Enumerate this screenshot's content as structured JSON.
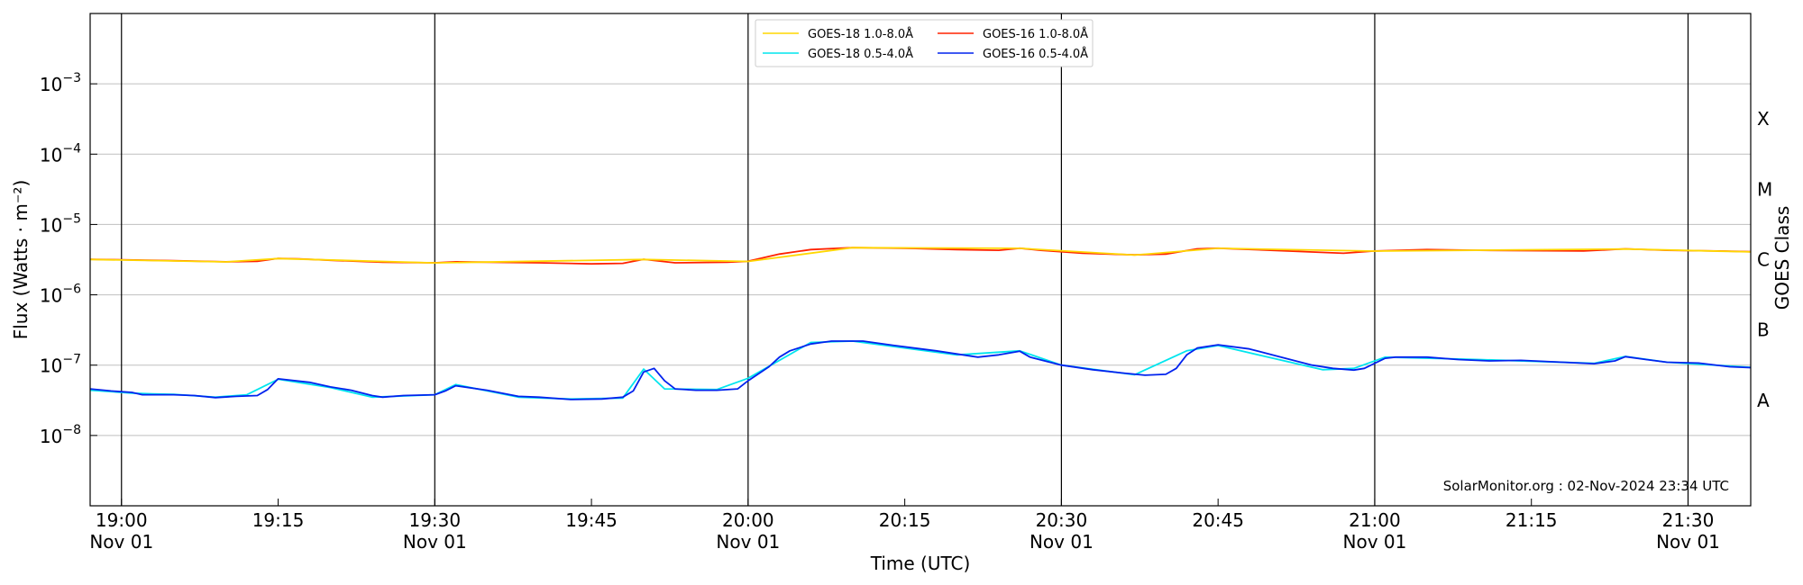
{
  "chart_data": {
    "type": "line",
    "xlabel": "Time (UTC)",
    "ylabel": "Flux (Watts · m⁻²)",
    "right_axis_label": "GOES Class",
    "xlim": [
      "2024-11-01T18:57:00",
      "2024-11-01T21:36:00"
    ],
    "ylim": [
      1e-09,
      0.01
    ],
    "y_scale": "log",
    "grid": "horizontal",
    "legend_position": "top-center",
    "x_ticks": [
      {
        "time": "19:00",
        "line1": "19:00",
        "line2": "Nov 01"
      },
      {
        "time": "19:15",
        "line1": "19:15",
        "line2": ""
      },
      {
        "time": "19:30",
        "line1": "19:30",
        "line2": "Nov 01"
      },
      {
        "time": "19:45",
        "line1": "19:45",
        "line2": ""
      },
      {
        "time": "20:00",
        "line1": "20:00",
        "line2": "Nov 01"
      },
      {
        "time": "20:15",
        "line1": "20:15",
        "line2": ""
      },
      {
        "time": "20:30",
        "line1": "20:30",
        "line2": "Nov 01"
      },
      {
        "time": "20:45",
        "line1": "20:45",
        "line2": ""
      },
      {
        "time": "21:00",
        "line1": "21:00",
        "line2": "Nov 01"
      },
      {
        "time": "21:15",
        "line1": "21:15",
        "line2": ""
      },
      {
        "time": "21:30",
        "line1": "21:30",
        "line2": "Nov 01"
      }
    ],
    "vertical_lines": [
      "19:00",
      "19:30",
      "20:00",
      "20:30",
      "21:00",
      "21:30"
    ],
    "y_ticks": [
      {
        "value": 1e-08,
        "base": "10",
        "exp": "−8"
      },
      {
        "value": 1e-07,
        "base": "10",
        "exp": "−7"
      },
      {
        "value": 1e-06,
        "base": "10",
        "exp": "−6"
      },
      {
        "value": 1e-05,
        "base": "10",
        "exp": "−5"
      },
      {
        "value": 0.0001,
        "base": "10",
        "exp": "−4"
      },
      {
        "value": 0.001,
        "base": "10",
        "exp": "−3"
      }
    ],
    "goes_classes": [
      {
        "label": "A",
        "value": 3.16e-08
      },
      {
        "label": "B",
        "value": 3.16e-07
      },
      {
        "label": "C",
        "value": 3.16e-06
      },
      {
        "label": "M",
        "value": 3.16e-05
      },
      {
        "label": "X",
        "value": 0.000316
      }
    ],
    "legend": [
      {
        "label": "GOES-18 1.0-8.0Å",
        "color": "#ffd700"
      },
      {
        "label": "GOES-18 0.5-4.0Å",
        "color": "#00e5ee"
      },
      {
        "label": "GOES-16 1.0-8.0Å",
        "color": "#ff2200"
      },
      {
        "label": "GOES-16 0.5-4.0Å",
        "color": "#0022ee"
      }
    ],
    "annotation": "SolarMonitor.org : 02-Nov-2024 23:34 UTC",
    "series": [
      {
        "name": "GOES-16 1.0-8.0Å",
        "color": "#ff2200",
        "points": [
          [
            "18:57",
            3.2e-06
          ],
          [
            "19:00",
            3.15e-06
          ],
          [
            "19:05",
            3.05e-06
          ],
          [
            "19:10",
            2.95e-06
          ],
          [
            "19:13",
            3e-06
          ],
          [
            "19:15",
            3.3e-06
          ],
          [
            "19:17",
            3.25e-06
          ],
          [
            "19:20",
            3.1e-06
          ],
          [
            "19:25",
            2.9e-06
          ],
          [
            "19:30",
            2.85e-06
          ],
          [
            "19:32",
            2.95e-06
          ],
          [
            "19:40",
            2.85e-06
          ],
          [
            "19:45",
            2.75e-06
          ],
          [
            "19:48",
            2.8e-06
          ],
          [
            "19:50",
            3.2e-06
          ],
          [
            "19:53",
            2.85e-06
          ],
          [
            "19:58",
            2.9e-06
          ],
          [
            "20:00",
            3e-06
          ],
          [
            "20:03",
            3.8e-06
          ],
          [
            "20:06",
            4.4e-06
          ],
          [
            "20:10",
            4.7e-06
          ],
          [
            "20:15",
            4.6e-06
          ],
          [
            "20:20",
            4.4e-06
          ],
          [
            "20:24",
            4.3e-06
          ],
          [
            "20:26",
            4.6e-06
          ],
          [
            "20:28",
            4.3e-06
          ],
          [
            "20:32",
            3.9e-06
          ],
          [
            "20:37",
            3.7e-06
          ],
          [
            "20:40",
            3.8e-06
          ],
          [
            "20:43",
            4.5e-06
          ],
          [
            "20:45",
            4.6e-06
          ],
          [
            "20:50",
            4.3e-06
          ],
          [
            "20:57",
            3.9e-06
          ],
          [
            "21:00",
            4.2e-06
          ],
          [
            "21:05",
            4.4e-06
          ],
          [
            "21:10",
            4.3e-06
          ],
          [
            "21:20",
            4.2e-06
          ],
          [
            "21:24",
            4.5e-06
          ],
          [
            "21:28",
            4.3e-06
          ],
          [
            "21:33",
            4.2e-06
          ],
          [
            "21:36",
            4.1e-06
          ]
        ]
      },
      {
        "name": "GOES-18 1.0-8.0Å",
        "color": "#ffd700",
        "points": [
          [
            "18:57",
            3.18e-06
          ],
          [
            "19:10",
            2.94e-06
          ],
          [
            "19:15",
            3.28e-06
          ],
          [
            "19:30",
            2.84e-06
          ],
          [
            "19:50",
            3.18e-06
          ],
          [
            "20:00",
            2.98e-06
          ],
          [
            "20:10",
            4.68e-06
          ],
          [
            "20:26",
            4.58e-06
          ],
          [
            "20:37",
            3.68e-06
          ],
          [
            "20:45",
            4.58e-06
          ],
          [
            "21:00",
            4.18e-06
          ],
          [
            "21:24",
            4.48e-06
          ],
          [
            "21:36",
            4.08e-06
          ]
        ]
      },
      {
        "name": "GOES-18 0.5-4.0Å",
        "color": "#00e5ee",
        "points": [
          [
            "18:57",
            4.4e-08
          ],
          [
            "19:01",
            4e-08
          ],
          [
            "19:03",
            3.9e-08
          ],
          [
            "19:05",
            3.85e-08
          ],
          [
            "19:09",
            3.5e-08
          ],
          [
            "19:12",
            3.8e-08
          ],
          [
            "19:15",
            6.3e-08
          ],
          [
            "19:20",
            4.8e-08
          ],
          [
            "19:24",
            3.5e-08
          ],
          [
            "19:30",
            3.8e-08
          ],
          [
            "19:32",
            5.3e-08
          ],
          [
            "19:38",
            3.5e-08
          ],
          [
            "19:43",
            3.3e-08
          ],
          [
            "19:48",
            3.4e-08
          ],
          [
            "19:50",
            8.8e-08
          ],
          [
            "19:52",
            4.6e-08
          ],
          [
            "19:57",
            4.5e-08
          ],
          [
            "20:00",
            6.5e-08
          ],
          [
            "20:06",
            2.1e-07
          ],
          [
            "20:10",
            2.2e-07
          ],
          [
            "20:20",
            1.4e-07
          ],
          [
            "20:26",
            1.6e-07
          ],
          [
            "20:30",
            1e-07
          ],
          [
            "20:37",
            7.3e-08
          ],
          [
            "20:42",
            1.6e-07
          ],
          [
            "20:45",
            1.9e-07
          ],
          [
            "20:55",
            8.6e-08
          ],
          [
            "20:58",
            9e-08
          ],
          [
            "21:01",
            1.3e-07
          ],
          [
            "21:10",
            1.2e-07
          ],
          [
            "21:21",
            1.06e-07
          ],
          [
            "21:24",
            1.33e-07
          ],
          [
            "21:28",
            1.1e-07
          ],
          [
            "21:36",
            9.3e-08
          ]
        ]
      },
      {
        "name": "GOES-16 0.5-4.0Å",
        "color": "#0022ee",
        "points": [
          [
            "18:57",
            4.6e-08
          ],
          [
            "18:59",
            4.3e-08
          ],
          [
            "19:01",
            4.1e-08
          ],
          [
            "19:02",
            3.8e-08
          ],
          [
            "19:05",
            3.8e-08
          ],
          [
            "19:07",
            3.7e-08
          ],
          [
            "19:09",
            3.45e-08
          ],
          [
            "19:11",
            3.6e-08
          ],
          [
            "19:13",
            3.7e-08
          ],
          [
            "19:14",
            4.5e-08
          ],
          [
            "19:15",
            6.4e-08
          ],
          [
            "19:18",
            5.7e-08
          ],
          [
            "19:20",
            4.9e-08
          ],
          [
            "19:22",
            4.4e-08
          ],
          [
            "19:24",
            3.7e-08
          ],
          [
            "19:25",
            3.5e-08
          ],
          [
            "19:27",
            3.7e-08
          ],
          [
            "19:30",
            3.8e-08
          ],
          [
            "19:31",
            4.3e-08
          ],
          [
            "19:32",
            5.1e-08
          ],
          [
            "19:35",
            4.4e-08
          ],
          [
            "19:38",
            3.6e-08
          ],
          [
            "19:40",
            3.5e-08
          ],
          [
            "19:43",
            3.25e-08
          ],
          [
            "19:46",
            3.3e-08
          ],
          [
            "19:48",
            3.5e-08
          ],
          [
            "19:49",
            4.3e-08
          ],
          [
            "19:50",
            8e-08
          ],
          [
            "19:51",
            9e-08
          ],
          [
            "19:52",
            6e-08
          ],
          [
            "19:53",
            4.6e-08
          ],
          [
            "19:55",
            4.4e-08
          ],
          [
            "19:57",
            4.4e-08
          ],
          [
            "19:59",
            4.6e-08
          ],
          [
            "20:00",
            6e-08
          ],
          [
            "20:02",
            9.5e-08
          ],
          [
            "20:03",
            1.3e-07
          ],
          [
            "20:04",
            1.6e-07
          ],
          [
            "20:06",
            2e-07
          ],
          [
            "20:08",
            2.2e-07
          ],
          [
            "20:11",
            2.2e-07
          ],
          [
            "20:14",
            1.9e-07
          ],
          [
            "20:18",
            1.6e-07
          ],
          [
            "20:22",
            1.3e-07
          ],
          [
            "20:24",
            1.4e-07
          ],
          [
            "20:26",
            1.58e-07
          ],
          [
            "20:27",
            1.3e-07
          ],
          [
            "20:30",
            1e-07
          ],
          [
            "20:33",
            8.6e-08
          ],
          [
            "20:36",
            7.7e-08
          ],
          [
            "20:38",
            7.2e-08
          ],
          [
            "20:40",
            7.4e-08
          ],
          [
            "20:41",
            9e-08
          ],
          [
            "20:42",
            1.4e-07
          ],
          [
            "20:43",
            1.75e-07
          ],
          [
            "20:45",
            1.95e-07
          ],
          [
            "20:48",
            1.7e-07
          ],
          [
            "20:51",
            1.3e-07
          ],
          [
            "20:54",
            1e-07
          ],
          [
            "20:56",
            9e-08
          ],
          [
            "20:58",
            8.5e-08
          ],
          [
            "20:59",
            9e-08
          ],
          [
            "21:01",
            1.25e-07
          ],
          [
            "21:02",
            1.3e-07
          ],
          [
            "21:05",
            1.3e-07
          ],
          [
            "21:08",
            1.2e-07
          ],
          [
            "21:11",
            1.15e-07
          ],
          [
            "21:14",
            1.17e-07
          ],
          [
            "21:18",
            1.1e-07
          ],
          [
            "21:21",
            1.05e-07
          ],
          [
            "21:23",
            1.15e-07
          ],
          [
            "21:24",
            1.32e-07
          ],
          [
            "21:26",
            1.2e-07
          ],
          [
            "21:28",
            1.1e-07
          ],
          [
            "21:31",
            1.07e-07
          ],
          [
            "21:34",
            9.5e-08
          ],
          [
            "21:36",
            9.2e-08
          ]
        ]
      }
    ]
  }
}
